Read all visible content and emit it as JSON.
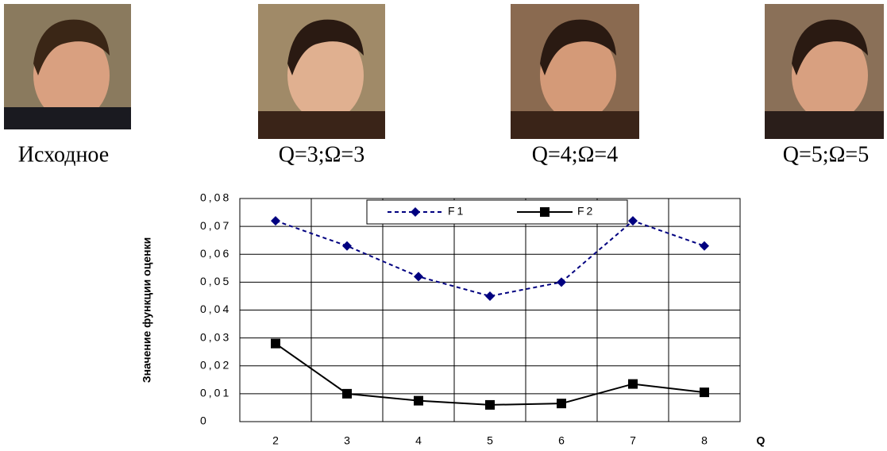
{
  "images": [
    {
      "caption": "Исходное"
    },
    {
      "caption": "Q=3;Ω=3"
    },
    {
      "caption": "Q=4;Ω=4"
    },
    {
      "caption": "Q=5;Ω=5"
    }
  ],
  "chart_data": {
    "type": "line",
    "x_label": "Q",
    "y_label": "Значение функции оценки",
    "categories": [
      "2",
      "3",
      "4",
      "5",
      "6",
      "7",
      "8"
    ],
    "series": [
      {
        "name": "F1",
        "color": "#000080",
        "dash": true,
        "marker": "diamond",
        "values": [
          0.072,
          0.063,
          0.052,
          0.045,
          0.05,
          0.072,
          0.063
        ]
      },
      {
        "name": "F2",
        "color": "#000000",
        "dash": false,
        "marker": "square",
        "values": [
          0.028,
          0.01,
          0.0075,
          0.006,
          0.0065,
          0.0135,
          0.0105
        ]
      }
    ],
    "ylim": [
      0,
      0.08
    ],
    "yticks": [
      0,
      {
        "value": 0.01,
        "label": "0,01"
      },
      {
        "value": 0.02,
        "label": "0,02"
      },
      {
        "value": 0.03,
        "label": "0,03"
      },
      {
        "value": 0.04,
        "label": "0,04"
      },
      {
        "value": 0.05,
        "label": "0,05"
      },
      {
        "value": 0.06,
        "label": "0,06"
      },
      {
        "value": 0.07,
        "label": "0,07"
      },
      {
        "value": 0.08,
        "label": "0,08"
      }
    ],
    "grid": true
  }
}
